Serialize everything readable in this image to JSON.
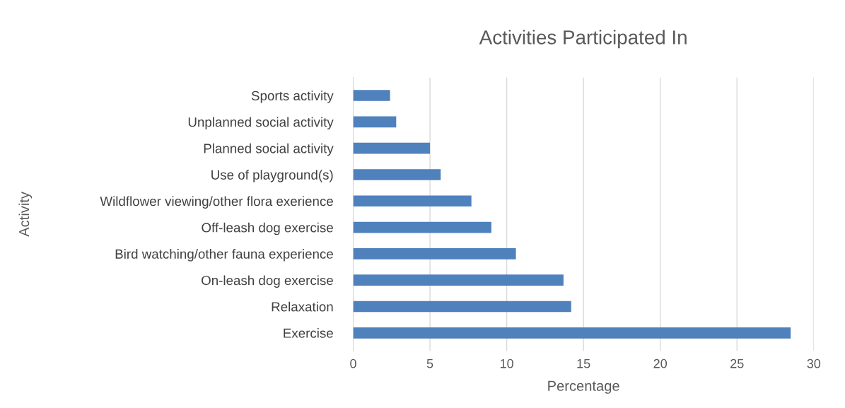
{
  "chart_data": {
    "type": "bar",
    "orientation": "horizontal",
    "title": "Activities Participated In",
    "xlabel": "Percentage",
    "ylabel": "Activity",
    "categories": [
      "Sports activity",
      "Unplanned social activity",
      "Planned social activity",
      "Use of playground(s)",
      "Wildflower viewing/other flora exerience",
      "Off-leash dog exercise",
      "Bird watching/other fauna experience",
      "On-leash dog exercise",
      "Relaxation",
      "Exercise"
    ],
    "values": [
      2.4,
      2.8,
      5.0,
      5.7,
      7.7,
      9.0,
      10.6,
      13.7,
      14.2,
      28.5
    ],
    "color": "#4f81bd",
    "xlim": [
      0,
      30
    ],
    "xticks": [
      0,
      5,
      10,
      15,
      20,
      25,
      30
    ],
    "grid": "x",
    "legend": false
  }
}
